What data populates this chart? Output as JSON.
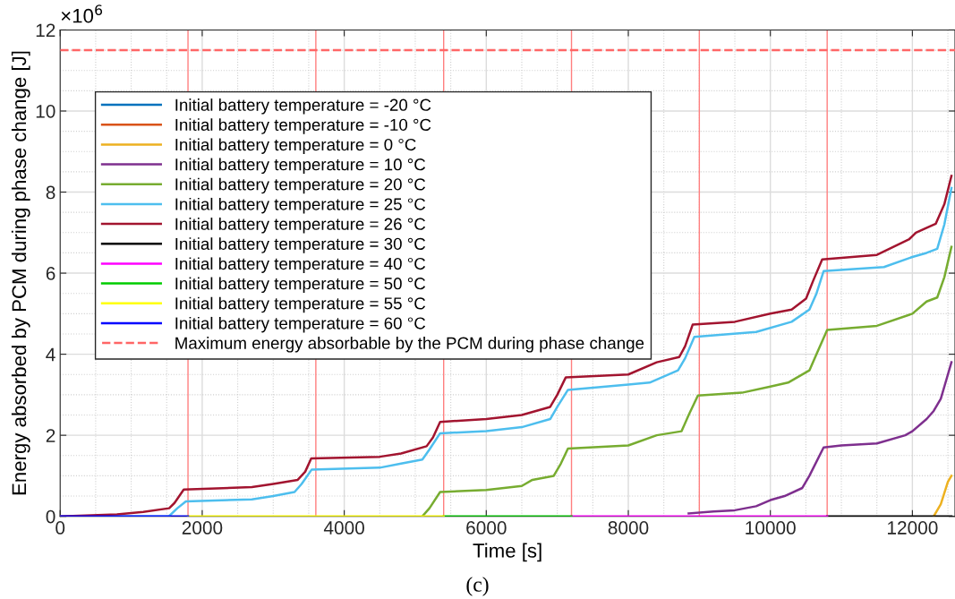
{
  "chart_data": {
    "type": "line",
    "xlabel": "Time [s]",
    "ylabel": "Energy absorbed by PCM during phase change [J]",
    "xlim": [
      0,
      12600
    ],
    "ylim": [
      0,
      12
    ],
    "xticks": [
      0,
      2000,
      4000,
      6000,
      8000,
      10000,
      12000
    ],
    "yticks": [
      0,
      2,
      4,
      6,
      8,
      10,
      12
    ],
    "grid": true,
    "legend": "top left",
    "line_style": "solid",
    "annotations": [
      "×10$^{6}$",
      "(c)"
    ],
    "ref_lines": [
      {
        "axis": "x",
        "value": 1800,
        "color": "#ff7f7f"
      },
      {
        "axis": "x",
        "value": 3600,
        "color": "#ff7f7f"
      },
      {
        "axis": "x",
        "value": 5400,
        "color": "#ff7f7f"
      },
      {
        "axis": "x",
        "value": 7200,
        "color": "#ff7f7f"
      },
      {
        "axis": "x",
        "value": 9000,
        "color": "#ff7f7f"
      },
      {
        "axis": "x",
        "value": 10800,
        "color": "#ff7f7f"
      }
    ],
    "series": [
      {
        "name": "Initial battery temperature = -20 °C",
        "color": "#0072bd"
      },
      {
        "name": "Initial battery temperature = -10 °C",
        "color": "#d95319"
      },
      {
        "name": "Initial battery temperature = 0 °C",
        "color": "#edb120",
        "x": [
          12300,
          12400,
          12500,
          12550
        ],
        "values": [
          0,
          0.3,
          0.85,
          1.0
        ]
      },
      {
        "name": "Initial battery temperature = 10 °C",
        "color": "#7e2f8e",
        "x": [
          8850,
          9200,
          9500,
          9800,
          10000,
          10200,
          10450,
          10550,
          10750,
          11000,
          11500,
          11900,
          12000,
          12200,
          12300,
          12400,
          12500,
          12550
        ],
        "values": [
          0.07,
          0.12,
          0.15,
          0.25,
          0.4,
          0.5,
          0.7,
          1.0,
          1.7,
          1.75,
          1.8,
          2.0,
          2.1,
          2.4,
          2.6,
          2.9,
          3.5,
          3.8
        ]
      },
      {
        "name": "Initial battery temperature = 20 °C",
        "color": "#77ac30",
        "x": [
          5100,
          5200,
          5350,
          6000,
          6500,
          6650,
          6950,
          7050,
          7150,
          8000,
          8400,
          8750,
          8850,
          8980,
          9600,
          10000,
          10250,
          10550,
          10650,
          10800,
          11500,
          12000,
          12200,
          12350,
          12450,
          12550
        ],
        "values": [
          0,
          0.2,
          0.6,
          0.65,
          0.75,
          0.9,
          1.0,
          1.3,
          1.67,
          1.75,
          2.0,
          2.1,
          2.5,
          2.98,
          3.05,
          3.2,
          3.3,
          3.6,
          4.0,
          4.6,
          4.7,
          5.0,
          5.3,
          5.4,
          5.9,
          6.65
        ]
      },
      {
        "name": "Initial battery temperature = 25 °C",
        "color": "#4dbeee",
        "x": [
          0,
          1530,
          1650,
          1770,
          2700,
          3000,
          3300,
          3400,
          3540,
          4500,
          4800,
          5100,
          5200,
          5350,
          6000,
          6500,
          6900,
          7000,
          7150,
          8000,
          8300,
          8700,
          8800,
          8930,
          9800,
          10300,
          10550,
          10650,
          10750,
          11600,
          12000,
          12200,
          12350,
          12450,
          12550
        ],
        "values": [
          0,
          0,
          0.2,
          0.37,
          0.42,
          0.5,
          0.6,
          0.8,
          1.15,
          1.2,
          1.3,
          1.4,
          1.65,
          2.05,
          2.1,
          2.2,
          2.4,
          2.7,
          3.12,
          3.25,
          3.3,
          3.6,
          3.9,
          4.43,
          4.55,
          4.8,
          5.1,
          5.5,
          6.05,
          6.15,
          6.4,
          6.5,
          6.6,
          7.2,
          8.1
        ]
      },
      {
        "name": "Initial battery temperature = 26 °C",
        "color": "#a2142f",
        "x": [
          0,
          800,
          1170,
          1535,
          1610,
          1740,
          2700,
          3000,
          3345,
          3450,
          3535,
          4500,
          4800,
          5160,
          5250,
          5350,
          6000,
          6500,
          6900,
          7000,
          7120,
          8000,
          8400,
          8717,
          8800,
          8906,
          9500,
          10000,
          10300,
          10503,
          10600,
          10730,
          11500,
          11950,
          12050,
          12330,
          12450,
          12550
        ],
        "values": [
          0,
          0.05,
          0.11,
          0.2,
          0.33,
          0.66,
          0.72,
          0.8,
          0.9,
          1.1,
          1.43,
          1.47,
          1.55,
          1.73,
          1.95,
          2.33,
          2.4,
          2.5,
          2.7,
          3.0,
          3.43,
          3.5,
          3.8,
          3.93,
          4.2,
          4.73,
          4.8,
          5.0,
          5.1,
          5.37,
          5.8,
          6.34,
          6.45,
          6.83,
          7.0,
          7.22,
          7.7,
          8.4
        ]
      },
      {
        "name": "Initial battery temperature = 30 °C",
        "color": "#000000",
        "x": [
          10800,
          12550
        ],
        "values": [
          0,
          0
        ]
      },
      {
        "name": "Initial battery temperature = 40 °C",
        "color": "#ff00ff",
        "x": [
          7200,
          10800
        ],
        "values": [
          0,
          0
        ]
      },
      {
        "name": "Initial battery temperature = 50 °C",
        "color": "#00cc00",
        "x": [
          5400,
          7200
        ],
        "values": [
          0,
          0
        ]
      },
      {
        "name": "Initial battery temperature = 55 °C",
        "color": "#ffff00",
        "x": [
          1800,
          5400
        ],
        "values": [
          0,
          0
        ]
      },
      {
        "name": "Initial battery temperature = 60 °C",
        "color": "#0000ff",
        "x": [
          0,
          1800
        ],
        "values": [
          0,
          0
        ]
      },
      {
        "name": "Maximum energy absorbable by the PCM during phase change",
        "color": "#ff6666",
        "line_style": "dashed",
        "x": [
          0,
          12600
        ],
        "values": [
          11.5,
          11.5
        ]
      }
    ]
  }
}
